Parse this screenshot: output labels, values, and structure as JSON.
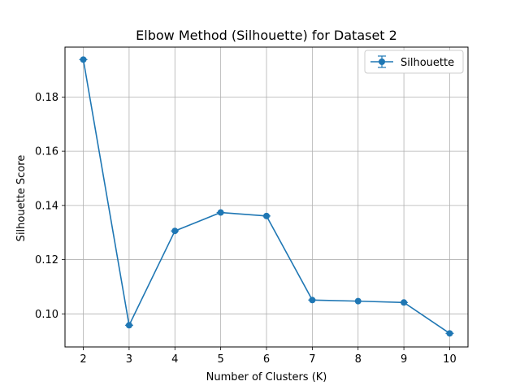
{
  "chart_data": {
    "type": "line",
    "title": "Elbow Method (Silhouette) for Dataset 2",
    "xlabel": "Number of Clusters (K)",
    "ylabel": "Silhouette Score",
    "x": [
      2,
      3,
      4,
      5,
      6,
      7,
      8,
      9,
      10
    ],
    "xticks": [
      "2",
      "3",
      "4",
      "5",
      "6",
      "7",
      "8",
      "9",
      "10"
    ],
    "yticks": [
      "0.10",
      "0.12",
      "0.14",
      "0.16",
      "0.18"
    ],
    "xlim": [
      1.6,
      10.4
    ],
    "ylim": [
      0.0878,
      0.1984
    ],
    "grid": true,
    "legend_position": "top-right",
    "series": [
      {
        "name": "Silhouette",
        "color": "#1f77b4",
        "marker": "circle",
        "error_bars": true,
        "values": [
          0.1938,
          0.0958,
          0.1306,
          0.1374,
          0.1361,
          0.1051,
          0.1047,
          0.1042,
          0.0928
        ]
      }
    ]
  }
}
